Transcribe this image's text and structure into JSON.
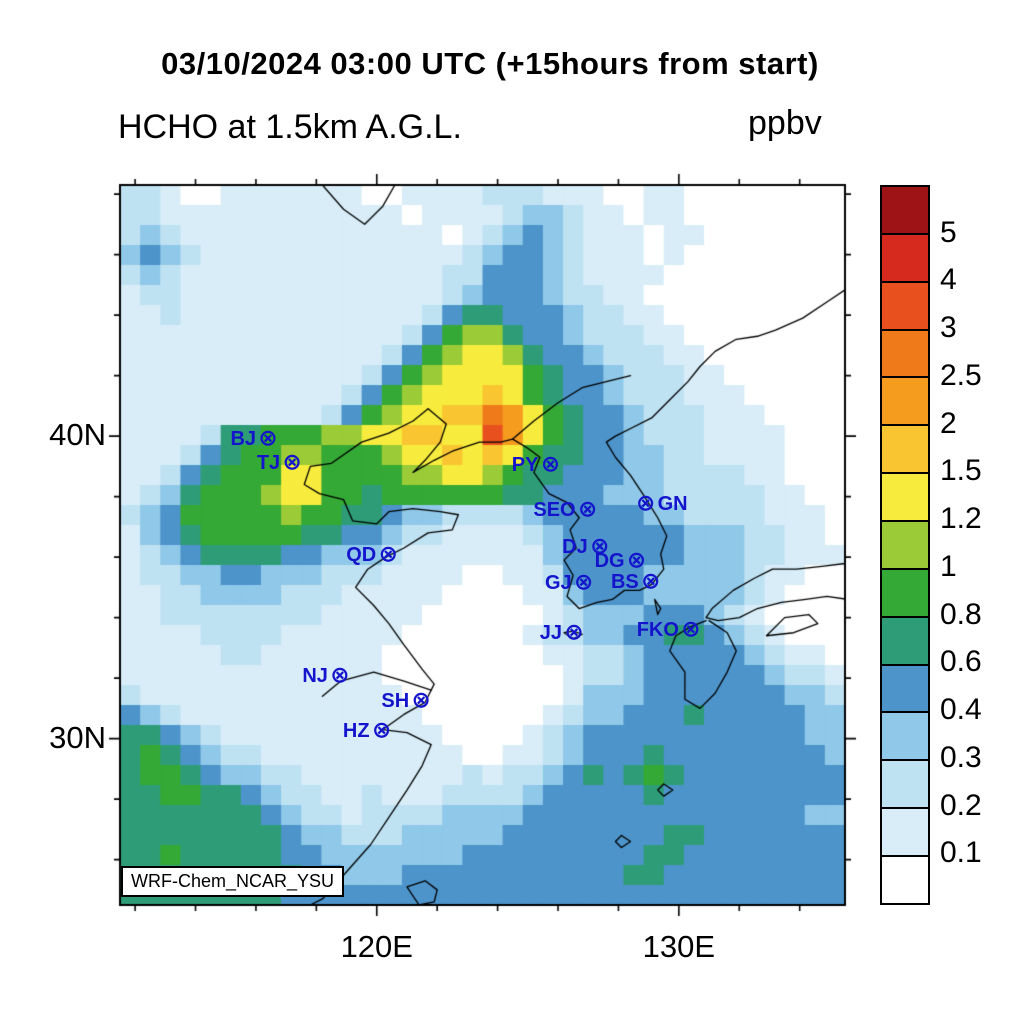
{
  "figure": {
    "title": "03/10/2024 03:00 UTC (+15hours from start)",
    "subtitle_left": "HCHO at 1.5km A.G.L.",
    "units_label": "ppbv",
    "watermark": "WRF-Chem_NCAR_YSU"
  },
  "axes": {
    "x_major": [
      {
        "lon": 120,
        "label": "120E"
      },
      {
        "lon": 130,
        "label": "130E"
      }
    ],
    "y_major": [
      {
        "lat": 40,
        "label": "40N"
      },
      {
        "lat": 30,
        "label": "30N"
      }
    ],
    "minor_step_deg": 2
  },
  "colorbar": {
    "tick_labels": [
      "5",
      "4",
      "3",
      "2.5",
      "2",
      "1.5",
      "1.2",
      "1",
      "0.8",
      "0.6",
      "0.4",
      "0.3",
      "0.2",
      "0.1"
    ],
    "colors_top_to_bottom": [
      "#9E1316",
      "#D62A1E",
      "#E8501E",
      "#EF7A1A",
      "#F59B1E",
      "#F9C632",
      "#F7EC3D",
      "#9BCB36",
      "#35A935",
      "#2E9D77",
      "#4D94CB",
      "#8FC8E8",
      "#BFE2F3",
      "#D8EDF8",
      "#FFFFFF"
    ]
  },
  "chart_data": {
    "type": "heatmap",
    "title": "03/10/2024 03:00 UTC (+15hours from start)",
    "variable": "HCHO",
    "level": "1.5km A.G.L.",
    "units": "ppbv",
    "model": "WRF-Chem_NCAR_YSU",
    "extent": {
      "lon_min": 111.5,
      "lon_max": 135.5,
      "lat_min": 24.5,
      "lat_max": 48.3
    },
    "bin_edges_ppbv": [
      0.1,
      0.2,
      0.3,
      0.4,
      0.6,
      0.8,
      1,
      1.2,
      1.5,
      2,
      2.5,
      3,
      4,
      5
    ],
    "grid_shape": [
      36,
      36
    ],
    "grid_encoding": "each char = concentration bin index (hex 0-e): 0=<0.1 ppbv, 1=0.1-0.2, 2=0.2-0.3, 3=0.3-0.4, 4=0.4-0.6, 5=0.6-0.8, 6=0.8-1, 7=1-1.2, 8=1.2-1.5, 9=1.5-2, a=2-2.5, b=2.5-3, c=3-4, d=4-5, e=>5; rows north to south",
    "grid_rows_north_to_south": [
      "221001111111001111222111001100000000",
      "221111111111110111123321101100000000",
      "232111111111111101234321110110000000",
      "343211111111111112344321110100000000",
      "232111111111111122444321111000000000",
      "122111111111111123444322110000000000",
      "112111111111111245544432211000000000",
      "111111111111112467754432221100000000",
      "111111111111124678875443222110000000",
      "111111111111246788886544322211000000",
      "111111111112467888986544322211100000",
      "111111111124678899ba8654432221110000",
      "111125566677889988ca8654432221111000",
      "111245667766678898986554433221111000",
      "112456668866667788765544433222211000",
      "123566678866566666655444333222221100",
      "234666667665543322223444443322221110",
      "134566666554432211112344444433322110",
      "123455554433321111111344444433322111",
      "122334433322211110011244443333321100",
      "112233332221111100001134443333321000",
      "112222222211111000000123334443210000",
      "111122221111110000001223344554321000",
      "111112211111100000000112234444432110",
      "111111111111100000000012234444443221",
      "211111111111110000000013334444444332",
      "432111111111111000000123344454444433",
      "554321111111111100001234444444444433",
      "565432211111111110011234445444444443",
      "566543322111111112122345456544444444",
      "556655432211211122223444445444444444",
      "555555543221222233334444444444444433",
      "555555554332223333344444444554444444",
      "556555554433333334444444445544444444",
      "555555555443334444444444455444444444",
      "555555554444444444444444444444444444"
    ],
    "stations": [
      {
        "id": "BJ",
        "lon": 116.4,
        "lat": 39.9,
        "side": "left"
      },
      {
        "id": "TJ",
        "lon": 117.2,
        "lat": 39.12,
        "side": "left"
      },
      {
        "id": "PY",
        "lon": 125.75,
        "lat": 39.03,
        "side": "left"
      },
      {
        "id": "SEO",
        "lon": 126.98,
        "lat": 37.56,
        "side": "left"
      },
      {
        "id": "GN",
        "lon": 128.9,
        "lat": 37.75,
        "side": "right"
      },
      {
        "id": "QD",
        "lon": 120.38,
        "lat": 36.07,
        "side": "left"
      },
      {
        "id": "DJ",
        "lon": 127.38,
        "lat": 36.35,
        "side": "left"
      },
      {
        "id": "DG",
        "lon": 128.6,
        "lat": 35.87,
        "side": "left"
      },
      {
        "id": "GJ",
        "lon": 126.85,
        "lat": 35.16,
        "side": "left"
      },
      {
        "id": "BS",
        "lon": 129.07,
        "lat": 35.18,
        "side": "left"
      },
      {
        "id": "JJ",
        "lon": 126.53,
        "lat": 33.5,
        "side": "left"
      },
      {
        "id": "FKO",
        "lon": 130.4,
        "lat": 33.59,
        "side": "left"
      },
      {
        "id": "NJ",
        "lon": 118.78,
        "lat": 32.06,
        "side": "left"
      },
      {
        "id": "SH",
        "lon": 121.47,
        "lat": 31.23,
        "side": "left"
      },
      {
        "id": "HZ",
        "lon": 120.16,
        "lat": 30.25,
        "side": "left"
      }
    ],
    "coastlines": {
      "china_coast": [
        [
          121.7,
          40.9
        ],
        [
          121.2,
          40.5
        ],
        [
          120.4,
          40.1
        ],
        [
          119.5,
          39.8
        ],
        [
          118.5,
          39.1
        ],
        [
          117.8,
          39.0
        ],
        [
          117.6,
          38.4
        ],
        [
          118.1,
          38.1
        ],
        [
          118.9,
          37.9
        ],
        [
          119.2,
          37.2
        ],
        [
          120.0,
          37.1
        ],
        [
          120.4,
          37.5
        ],
        [
          121.2,
          37.6
        ],
        [
          122.1,
          37.5
        ],
        [
          122.7,
          37.4
        ],
        [
          122.5,
          36.9
        ],
        [
          121.7,
          36.8
        ],
        [
          120.9,
          36.3
        ],
        [
          120.3,
          36.0
        ],
        [
          119.7,
          35.6
        ],
        [
          119.3,
          35.0
        ],
        [
          119.9,
          34.4
        ],
        [
          120.4,
          33.8
        ],
        [
          120.9,
          33.1
        ],
        [
          121.5,
          32.3
        ],
        [
          121.9,
          31.8
        ],
        [
          121.6,
          31.2
        ],
        [
          120.9,
          30.8
        ],
        [
          120.2,
          30.3
        ],
        [
          121.0,
          30.2
        ],
        [
          121.8,
          29.8
        ],
        [
          121.5,
          29.1
        ],
        [
          121.0,
          28.3
        ],
        [
          120.4,
          27.4
        ],
        [
          119.8,
          26.5
        ],
        [
          119.0,
          25.6
        ],
        [
          118.2,
          24.7
        ],
        [
          117.8,
          24.5
        ]
      ],
      "liaodong_korea_primorye": [
        [
          121.7,
          40.9
        ],
        [
          122.3,
          40.4
        ],
        [
          122.1,
          39.8
        ],
        [
          121.6,
          39.2
        ],
        [
          121.2,
          38.8
        ],
        [
          121.9,
          39.2
        ],
        [
          122.5,
          39.5
        ],
        [
          123.4,
          39.8
        ],
        [
          124.1,
          39.8
        ],
        [
          124.5,
          39.9
        ],
        [
          125.0,
          39.6
        ],
        [
          125.4,
          39.3
        ],
        [
          125.2,
          38.8
        ],
        [
          125.7,
          38.1
        ],
        [
          126.3,
          37.8
        ],
        [
          126.7,
          37.3
        ],
        [
          126.4,
          36.9
        ],
        [
          126.6,
          36.3
        ],
        [
          126.2,
          35.9
        ],
        [
          126.5,
          35.4
        ],
        [
          126.3,
          34.7
        ],
        [
          126.7,
          34.3
        ],
        [
          127.3,
          34.5
        ],
        [
          127.8,
          34.6
        ],
        [
          128.2,
          34.9
        ],
        [
          128.7,
          34.9
        ],
        [
          129.1,
          35.1
        ],
        [
          129.5,
          35.6
        ],
        [
          129.4,
          36.1
        ],
        [
          129.6,
          36.7
        ],
        [
          129.3,
          37.3
        ],
        [
          128.8,
          38.1
        ],
        [
          128.4,
          38.7
        ],
        [
          127.9,
          39.3
        ],
        [
          127.6,
          39.8
        ],
        [
          127.9,
          40.0
        ],
        [
          128.5,
          40.3
        ],
        [
          129.1,
          40.6
        ],
        [
          129.8,
          41.3
        ],
        [
          130.3,
          41.8
        ],
        [
          130.7,
          42.3
        ],
        [
          131.2,
          42.8
        ],
        [
          131.9,
          43.2
        ],
        [
          132.6,
          43.3
        ],
        [
          133.2,
          43.5
        ],
        [
          134.1,
          43.9
        ],
        [
          135.0,
          44.5
        ],
        [
          135.6,
          44.9
        ]
      ],
      "yalu_river": [
        [
          124.5,
          39.9
        ],
        [
          125.2,
          40.5
        ],
        [
          126.0,
          41.1
        ],
        [
          126.8,
          41.6
        ],
        [
          127.6,
          41.8
        ],
        [
          128.4,
          42.0
        ]
      ],
      "northern_river": [
        [
          118.2,
          48.3
        ],
        [
          118.9,
          47.5
        ],
        [
          119.6,
          47.0
        ],
        [
          120.2,
          47.6
        ],
        [
          120.6,
          48.3
        ]
      ],
      "yangtze_river": [
        [
          121.8,
          31.6
        ],
        [
          120.9,
          31.9
        ],
        [
          119.9,
          32.2
        ],
        [
          118.8,
          31.9
        ],
        [
          118.2,
          31.4
        ]
      ],
      "kyushu": [
        [
          130.9,
          33.9
        ],
        [
          130.4,
          33.7
        ],
        [
          129.9,
          33.4
        ],
        [
          129.7,
          32.9
        ],
        [
          130.2,
          32.2
        ],
        [
          130.2,
          31.3
        ],
        [
          130.7,
          31.0
        ],
        [
          131.2,
          31.5
        ],
        [
          131.6,
          32.2
        ],
        [
          131.9,
          32.9
        ],
        [
          131.6,
          33.5
        ],
        [
          131.0,
          33.9
        ]
      ],
      "honshu": [
        [
          135.6,
          35.8
        ],
        [
          134.8,
          35.7
        ],
        [
          133.9,
          35.6
        ],
        [
          133.1,
          35.6
        ],
        [
          132.5,
          35.3
        ],
        [
          131.8,
          34.9
        ],
        [
          131.1,
          34.3
        ],
        [
          130.9,
          34.0
        ],
        [
          131.3,
          33.9
        ],
        [
          132.0,
          34.0
        ],
        [
          132.6,
          34.3
        ],
        [
          133.4,
          34.5
        ],
        [
          134.2,
          34.6
        ],
        [
          134.9,
          34.7
        ],
        [
          135.6,
          34.6
        ]
      ],
      "shikoku": [
        [
          132.9,
          33.4
        ],
        [
          133.8,
          33.5
        ],
        [
          134.6,
          33.8
        ],
        [
          134.3,
          34.1
        ],
        [
          133.5,
          34.0
        ],
        [
          132.9,
          33.4
        ]
      ],
      "jeju_island": [
        [
          126.2,
          33.5
        ],
        [
          126.5,
          33.55
        ],
        [
          126.8,
          33.45
        ],
        [
          126.5,
          33.3
        ],
        [
          126.2,
          33.5
        ]
      ],
      "tsushima": [
        [
          129.2,
          34.6
        ],
        [
          129.4,
          34.3
        ],
        [
          129.3,
          34.1
        ],
        [
          129.2,
          34.6
        ]
      ],
      "ryukyu_1": [
        [
          129.5,
          28.5
        ],
        [
          129.8,
          28.3
        ],
        [
          129.5,
          28.1
        ],
        [
          129.3,
          28.3
        ],
        [
          129.5,
          28.5
        ]
      ],
      "ryukyu_2": [
        [
          128.1,
          26.8
        ],
        [
          128.4,
          26.6
        ],
        [
          128.1,
          26.4
        ],
        [
          127.9,
          26.6
        ],
        [
          128.1,
          26.8
        ]
      ],
      "taiwan_north": [
        [
          121.0,
          25.1
        ],
        [
          121.6,
          25.3
        ],
        [
          122.0,
          25.0
        ],
        [
          121.9,
          24.6
        ],
        [
          121.4,
          24.5
        ],
        [
          121.0,
          25.1
        ]
      ]
    }
  }
}
